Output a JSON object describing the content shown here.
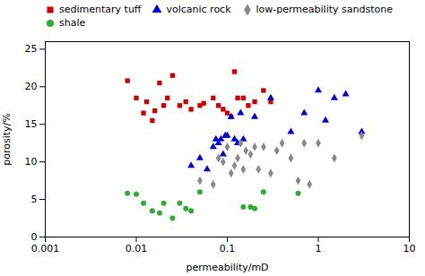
{
  "chart_data": {
    "type": "scatter",
    "xlabel": "permeability/mD",
    "ylabel": "porosity/%",
    "log": "x",
    "xlim": [
      0.001,
      10
    ],
    "xticks": [
      0.001,
      0.01,
      0.1,
      1,
      10
    ],
    "ylim": [
      0,
      26
    ],
    "yticks": [
      0,
      5,
      10,
      15,
      20,
      25
    ],
    "legend": "upper left",
    "series": [
      {
        "name": "sedimentary tuff",
        "color": "#cc0000",
        "marker": "square",
        "x": [
          0.008,
          0.01,
          0.012,
          0.013,
          0.015,
          0.016,
          0.018,
          0.02,
          0.022,
          0.025,
          0.03,
          0.035,
          0.04,
          0.05,
          0.055,
          0.07,
          0.08,
          0.09,
          0.1,
          0.11,
          0.12,
          0.13,
          0.15,
          0.17,
          0.2,
          0.25,
          0.3
        ],
        "values": [
          20.8,
          18.5,
          16.5,
          18.0,
          15.5,
          16.8,
          20.5,
          17.5,
          18.5,
          21.5,
          17.5,
          18.0,
          17.0,
          17.5,
          17.8,
          18.5,
          17.5,
          17.0,
          16.5,
          16.0,
          22.0,
          18.5,
          18.5,
          17.5,
          18.0,
          19.5,
          18.0
        ]
      },
      {
        "name": "volcanic rock",
        "color": "#0000cc",
        "marker": "triangle",
        "x": [
          0.04,
          0.05,
          0.06,
          0.07,
          0.075,
          0.08,
          0.085,
          0.09,
          0.095,
          0.1,
          0.11,
          0.12,
          0.13,
          0.14,
          0.15,
          0.2,
          0.3,
          0.5,
          0.7,
          1.0,
          1.2,
          1.5,
          2.0,
          3.0
        ],
        "values": [
          9.5,
          10.5,
          9.0,
          12.0,
          13.0,
          12.5,
          13.0,
          11.0,
          13.5,
          13.5,
          16.0,
          13.0,
          12.5,
          16.5,
          13.0,
          16.0,
          18.5,
          14.0,
          16.5,
          19.5,
          15.5,
          18.5,
          19.0,
          14.0
        ]
      },
      {
        "name": "low-permeability sandstone",
        "color": "#888888",
        "marker": "diamond",
        "x": [
          0.05,
          0.07,
          0.08,
          0.09,
          0.1,
          0.11,
          0.12,
          0.13,
          0.14,
          0.15,
          0.16,
          0.18,
          0.2,
          0.22,
          0.25,
          0.3,
          0.35,
          0.4,
          0.5,
          0.6,
          0.7,
          0.8,
          1.0,
          1.5,
          3.0
        ],
        "values": [
          7.5,
          7.0,
          10.5,
          10.0,
          12.0,
          8.5,
          9.5,
          10.5,
          12.5,
          9.0,
          11.5,
          11.0,
          12.0,
          9.0,
          12.0,
          8.5,
          11.5,
          12.5,
          10.5,
          7.5,
          12.5,
          7.0,
          12.5,
          10.5,
          13.5
        ]
      },
      {
        "name": "shale",
        "color": "#33aa33",
        "marker": "circle",
        "x": [
          0.008,
          0.01,
          0.012,
          0.015,
          0.018,
          0.02,
          0.025,
          0.03,
          0.035,
          0.04,
          0.05,
          0.15,
          0.18,
          0.2,
          0.25,
          0.6
        ],
        "values": [
          5.8,
          5.7,
          4.5,
          3.5,
          3.2,
          4.5,
          2.5,
          4.5,
          3.8,
          3.5,
          6.0,
          4.0,
          4.0,
          3.8,
          6.0,
          5.8
        ]
      }
    ]
  }
}
